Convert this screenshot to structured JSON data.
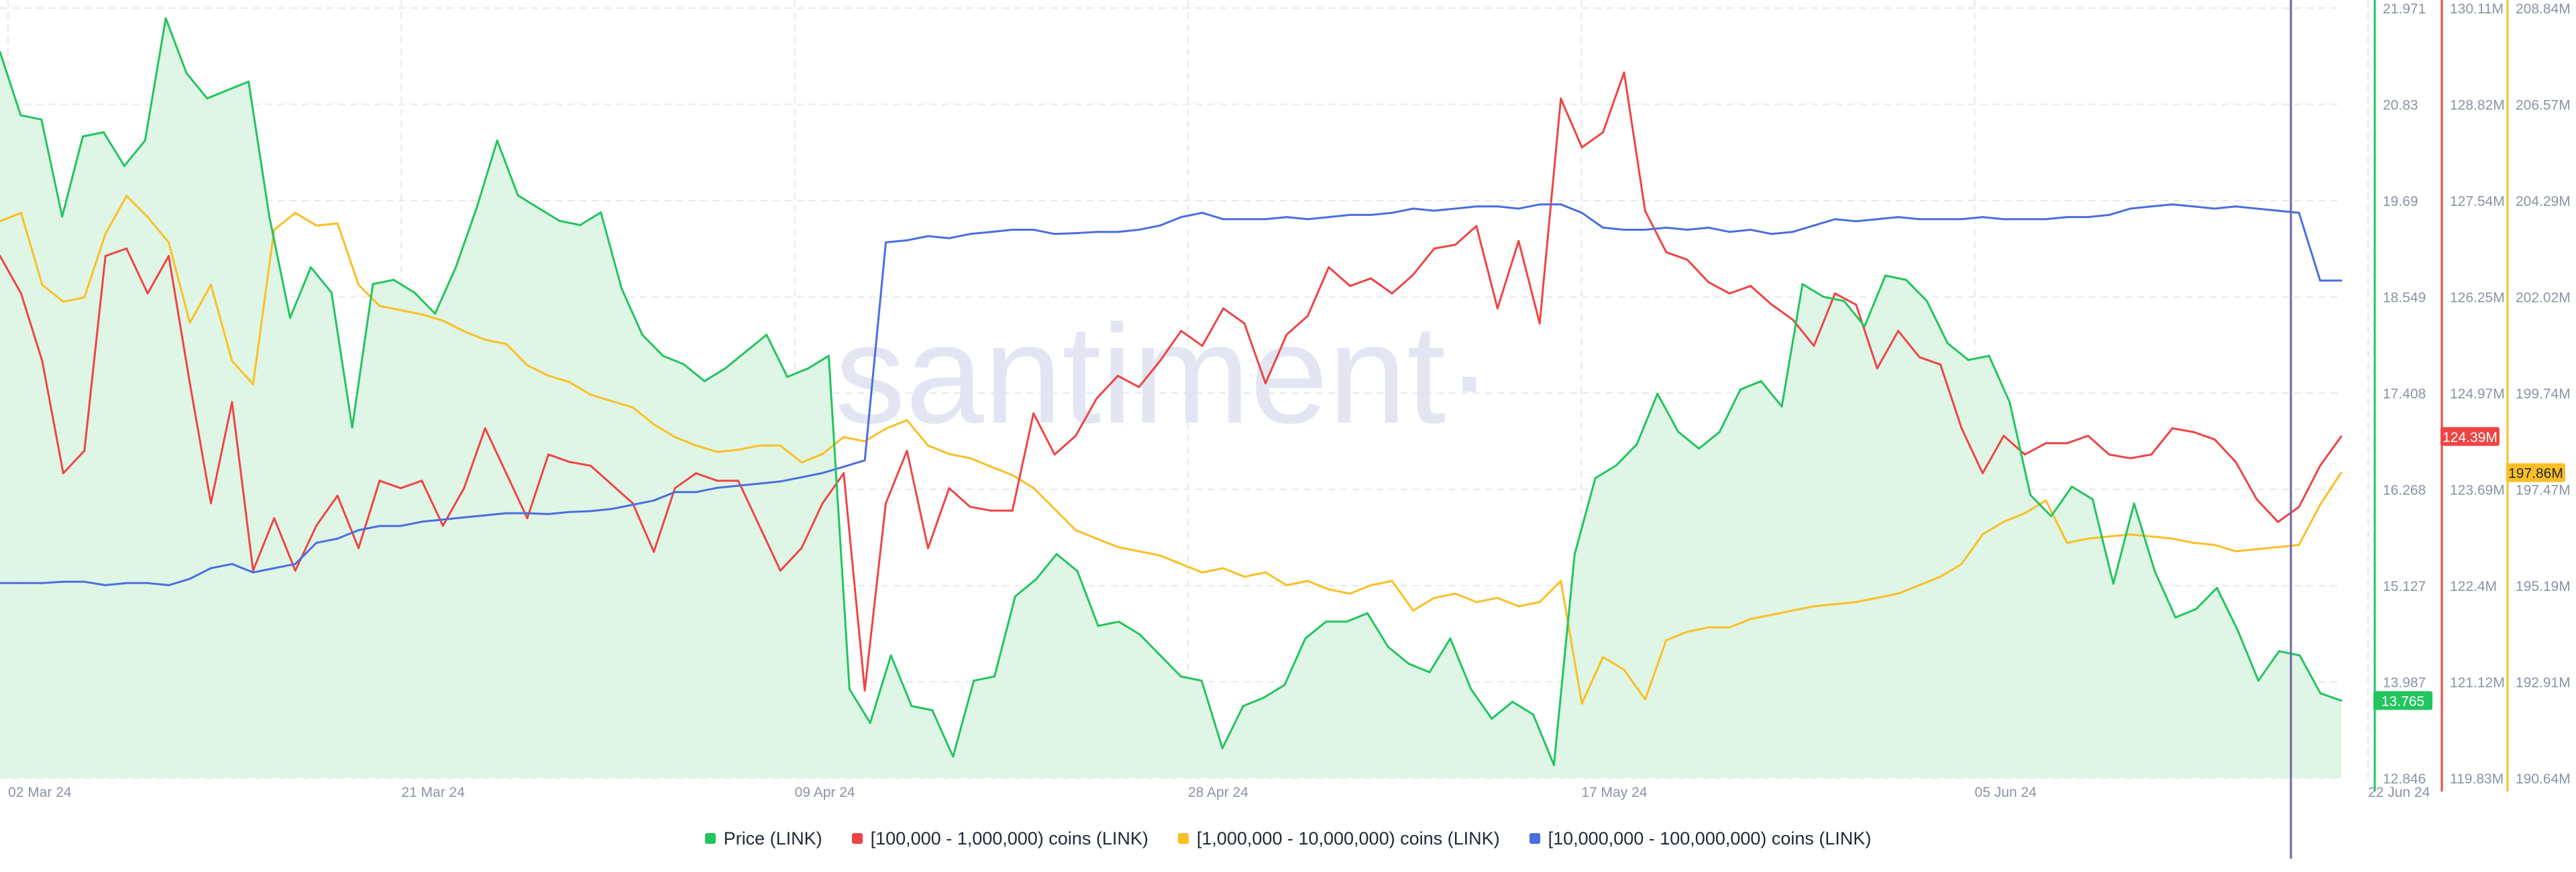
{
  "watermark": "·santiment·",
  "colors": {
    "price": "#22c55e",
    "s100k": "#ef4444",
    "s1m": "#fbbf24",
    "s10m": "#4a6ee0",
    "priceFill": "#dff5e5",
    "grid": "#e6e8ec",
    "cursor": "#6b63a8",
    "watermark": "#e3e6f2",
    "tick": "#8a93a6"
  },
  "chart_data": {
    "type": "line",
    "x_range": [
      "2024-03-01",
      "2024-06-22"
    ],
    "x_ticks": [
      "02 Mar 24",
      "21 Mar 24",
      "09 Apr 24",
      "28 Apr 24",
      "17 May 24",
      "05 Jun 24",
      "22 Jun 24"
    ],
    "axes": [
      {
        "key": "price",
        "ylim": [
          12.846,
          21.971
        ],
        "ticks": [
          "21.971",
          "20.83",
          "19.69",
          "18.549",
          "17.408",
          "16.268",
          "15.127",
          "13.987",
          "12.846"
        ],
        "current": "13.765",
        "current_value": 13.765
      },
      {
        "key": "s100k",
        "ylim": [
          119.83,
          130.11
        ],
        "ticks": [
          "130.11M",
          "128.82M",
          "127.54M",
          "126.25M",
          "124.97M",
          "123.69M",
          "122.4M",
          "121.12M",
          "119.83M"
        ],
        "current": "124.39M",
        "current_value": 124.39
      },
      {
        "key": "s1m",
        "ylim": [
          190.64,
          208.84
        ],
        "ticks": [
          "208.84M",
          "206.57M",
          "204.29M",
          "202.02M",
          "199.74M",
          "197.47M",
          "195.19M",
          "192.91M",
          "190.64M"
        ],
        "current": "197.86M",
        "current_value": 197.86
      }
    ],
    "series": [
      {
        "key": "price",
        "name": "Price (LINK)",
        "unit": "USD",
        "fill": true,
        "values": [
          21.45,
          20.7,
          20.65,
          19.5,
          20.45,
          20.5,
          20.1,
          20.4,
          21.85,
          21.2,
          20.9,
          21.0,
          21.1,
          19.5,
          18.3,
          18.9,
          18.6,
          17.0,
          18.7,
          18.75,
          18.6,
          18.35,
          18.9,
          19.6,
          20.4,
          19.75,
          19.6,
          19.45,
          19.4,
          19.55,
          18.65,
          18.1,
          17.85,
          17.75,
          17.55,
          17.7,
          17.9,
          18.1,
          17.6,
          17.7,
          17.85,
          13.9,
          13.5,
          14.3,
          13.7,
          13.65,
          13.1,
          14.0,
          14.05,
          15.0,
          15.2,
          15.5,
          15.3,
          14.65,
          14.7,
          14.55,
          14.3,
          14.05,
          14.0,
          13.2,
          13.7,
          13.8,
          13.95,
          14.5,
          14.7,
          14.7,
          14.8,
          14.4,
          14.2,
          14.1,
          14.5,
          13.9,
          13.55,
          13.75,
          13.6,
          13.0,
          15.5,
          16.4,
          16.55,
          16.8,
          17.4,
          16.95,
          16.75,
          16.95,
          17.45,
          17.55,
          17.25,
          18.7,
          18.55,
          18.5,
          18.2,
          18.8,
          18.75,
          18.5,
          18.0,
          17.8,
          17.85,
          17.3,
          16.2,
          15.95,
          16.3,
          16.15,
          15.15,
          16.1,
          15.3,
          14.75,
          14.85,
          15.1,
          14.6,
          14.0,
          14.35,
          14.3,
          13.85,
          13.765
        ]
      },
      {
        "key": "s100k",
        "name": "[100,000  - 1,000,000) coins (LINK)",
        "unit": "M coins",
        "axis": "s100k",
        "values": [
          126.8,
          126.3,
          125.4,
          123.9,
          124.2,
          126.8,
          126.9,
          126.3,
          126.8,
          125.1,
          123.5,
          124.85,
          122.6,
          123.3,
          122.6,
          123.2,
          123.6,
          122.9,
          123.8,
          123.7,
          123.8,
          123.2,
          123.7,
          124.5,
          123.9,
          123.3,
          124.15,
          124.05,
          124.0,
          123.75,
          123.5,
          122.85,
          123.7,
          123.9,
          123.8,
          123.8,
          123.2,
          122.6,
          122.9,
          123.5,
          123.9,
          121.0,
          123.5,
          124.2,
          122.9,
          123.7,
          123.45,
          123.4,
          123.4,
          124.7,
          124.15,
          124.4,
          124.9,
          125.2,
          125.05,
          125.4,
          125.8,
          125.6,
          126.1,
          125.9,
          125.1,
          125.75,
          126.0,
          126.65,
          126.4,
          126.5,
          126.3,
          126.55,
          126.9,
          126.95,
          127.2,
          126.1,
          127.0,
          125.9,
          128.9,
          128.25,
          128.45,
          129.25,
          127.4,
          126.85,
          126.75,
          126.45,
          126.3,
          126.4,
          126.15,
          125.95,
          125.6,
          126.3,
          126.15,
          125.3,
          125.8,
          125.45,
          125.35,
          124.5,
          123.9,
          124.4,
          124.15,
          124.3,
          124.3,
          124.4,
          124.15,
          124.1,
          124.15,
          124.5,
          124.45,
          124.35,
          124.05,
          123.55,
          123.25,
          123.45,
          124.0,
          124.39
        ]
      },
      {
        "key": "s1m",
        "name": "[1,000,000 - 10,000,000) coins (LINK)",
        "unit": "M coins",
        "axis": "s1m",
        "values": [
          203.8,
          204.0,
          202.3,
          201.9,
          202.0,
          203.5,
          204.4,
          203.9,
          203.3,
          201.4,
          202.3,
          200.5,
          199.95,
          203.6,
          204.0,
          203.7,
          203.75,
          202.3,
          201.8,
          201.7,
          201.6,
          201.45,
          201.2,
          201.0,
          200.9,
          200.4,
          200.15,
          200.0,
          199.7,
          199.55,
          199.4,
          199.0,
          198.7,
          198.5,
          198.35,
          198.4,
          198.5,
          198.5,
          198.1,
          198.3,
          198.7,
          198.6,
          198.9,
          199.1,
          198.5,
          198.3,
          198.2,
          198.0,
          197.8,
          197.5,
          197.0,
          196.5,
          196.3,
          196.1,
          196.0,
          195.9,
          195.7,
          195.5,
          195.6,
          195.4,
          195.5,
          195.2,
          195.3,
          195.1,
          195.0,
          195.2,
          195.3,
          194.6,
          194.9,
          195.0,
          194.8,
          194.9,
          194.7,
          194.8,
          195.3,
          192.4,
          193.5,
          193.2,
          192.5,
          193.9,
          194.1,
          194.2,
          194.2,
          194.4,
          194.5,
          194.6,
          194.7,
          194.75,
          194.8,
          194.9,
          195.0,
          195.2,
          195.4,
          195.7,
          196.4,
          196.7,
          196.9,
          197.2,
          196.2,
          196.3,
          196.35,
          196.4,
          196.35,
          196.3,
          196.2,
          196.15,
          196.0,
          196.05,
          196.1,
          196.15,
          197.1,
          197.86
        ]
      },
      {
        "key": "s10m",
        "name": "[10,000,000 - 100,000,000) coins (LINK)",
        "unit": "M coins",
        "axis": "s1m",
        "values": [
          195.25,
          195.25,
          195.25,
          195.28,
          195.28,
          195.2,
          195.25,
          195.25,
          195.2,
          195.35,
          195.6,
          195.7,
          195.5,
          195.6,
          195.7,
          196.2,
          196.3,
          196.5,
          196.6,
          196.6,
          196.7,
          196.75,
          196.8,
          196.85,
          196.9,
          196.9,
          196.88,
          196.93,
          196.95,
          197.0,
          197.1,
          197.2,
          197.4,
          197.4,
          197.5,
          197.55,
          197.6,
          197.65,
          197.75,
          197.85,
          198.0,
          198.15,
          203.3,
          203.35,
          203.45,
          203.4,
          203.5,
          203.55,
          203.6,
          203.6,
          203.5,
          203.52,
          203.55,
          203.55,
          203.6,
          203.7,
          203.9,
          204.0,
          203.85,
          203.85,
          203.85,
          203.9,
          203.85,
          203.9,
          203.95,
          203.95,
          204.0,
          204.1,
          204.05,
          204.1,
          204.15,
          204.15,
          204.1,
          204.2,
          204.2,
          204.0,
          203.65,
          203.6,
          203.6,
          203.65,
          203.6,
          203.65,
          203.55,
          203.6,
          203.5,
          203.55,
          203.7,
          203.85,
          203.8,
          203.85,
          203.9,
          203.85,
          203.85,
          203.85,
          203.9,
          203.85,
          203.85,
          203.85,
          203.9,
          203.9,
          203.95,
          204.1,
          204.15,
          204.2,
          204.15,
          204.1,
          204.15,
          204.1,
          204.05,
          204.0,
          202.4,
          202.4
        ]
      }
    ]
  },
  "legend": [
    {
      "key": "price",
      "label": "Price (LINK)"
    },
    {
      "key": "s100k",
      "label": "[100,000  - 1,000,000) coins (LINK)"
    },
    {
      "key": "s1m",
      "label": "[1,000,000 - 10,000,000) coins (LINK)"
    },
    {
      "key": "s10m",
      "label": "[10,000,000 - 100,000,000) coins (LINK)"
    }
  ]
}
